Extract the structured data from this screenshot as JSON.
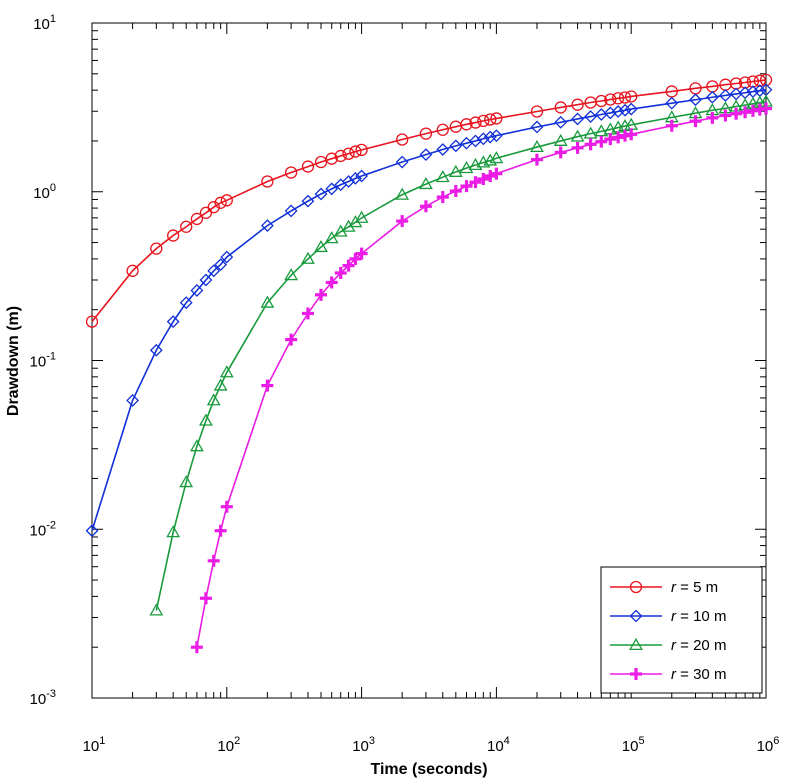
{
  "chart_data": {
    "type": "line",
    "x_scale": "log",
    "y_scale": "log",
    "xlim": [
      10,
      1000000
    ],
    "ylim": [
      0.001,
      10
    ],
    "xlabel": "Time (seconds)",
    "ylabel": "Drawdown (m)",
    "x_ticks": [
      {
        "base": "10",
        "exp": "1"
      },
      {
        "base": "10",
        "exp": "2"
      },
      {
        "base": "10",
        "exp": "3"
      },
      {
        "base": "10",
        "exp": "4"
      },
      {
        "base": "10",
        "exp": "5"
      },
      {
        "base": "10",
        "exp": "6"
      }
    ],
    "y_ticks": [
      {
        "base": "10",
        "exp": "-3"
      },
      {
        "base": "10",
        "exp": "-2"
      },
      {
        "base": "10",
        "exp": "-1"
      },
      {
        "base": "10",
        "exp": "0"
      },
      {
        "base": "10",
        "exp": "1"
      }
    ],
    "legend_position": "bottom-right",
    "grid": false,
    "series": [
      {
        "name_italic": "r",
        "name_rest": " = 5 m",
        "color": "#e8141e",
        "marker": "circle",
        "x": [
          10,
          20,
          30,
          40,
          50,
          60,
          70,
          80,
          90,
          100,
          200,
          300,
          400,
          500,
          600,
          700,
          800,
          900,
          1000,
          2000,
          3000,
          4000,
          5000,
          6000,
          7000,
          8000,
          9000,
          10000,
          20000,
          30000,
          40000,
          50000,
          60000,
          70000,
          80000,
          90000,
          100000,
          200000,
          300000,
          400000,
          500000,
          600000,
          700000,
          800000,
          900000,
          1000000
        ],
        "y": [
          0.17,
          0.34,
          0.46,
          0.55,
          0.62,
          0.69,
          0.75,
          0.81,
          0.86,
          0.89,
          1.15,
          1.3,
          1.41,
          1.5,
          1.57,
          1.63,
          1.68,
          1.73,
          1.77,
          2.04,
          2.21,
          2.33,
          2.43,
          2.51,
          2.57,
          2.63,
          2.68,
          2.72,
          2.99,
          3.16,
          3.28,
          3.38,
          3.45,
          3.52,
          3.58,
          3.62,
          3.67,
          3.93,
          4.1,
          4.21,
          4.31,
          4.38,
          4.44,
          4.5,
          4.55,
          4.6
        ]
      },
      {
        "name_italic": "r",
        "name_rest": " = 10 m",
        "color": "#1030d8",
        "marker": "diamond",
        "x": [
          10,
          20,
          30,
          40,
          50,
          60,
          70,
          80,
          90,
          100,
          200,
          300,
          400,
          500,
          600,
          700,
          800,
          900,
          1000,
          2000,
          3000,
          4000,
          5000,
          6000,
          7000,
          8000,
          9000,
          10000,
          20000,
          30000,
          40000,
          50000,
          60000,
          70000,
          80000,
          90000,
          100000,
          200000,
          300000,
          400000,
          500000,
          600000,
          700000,
          800000,
          900000,
          1000000
        ],
        "y": [
          0.0098,
          0.058,
          0.115,
          0.17,
          0.22,
          0.26,
          0.3,
          0.34,
          0.37,
          0.41,
          0.63,
          0.77,
          0.88,
          0.97,
          1.04,
          1.1,
          1.15,
          1.2,
          1.24,
          1.5,
          1.66,
          1.78,
          1.87,
          1.94,
          2.0,
          2.06,
          2.11,
          2.15,
          2.42,
          2.58,
          2.7,
          2.79,
          2.87,
          2.93,
          2.99,
          3.04,
          3.09,
          3.35,
          3.51,
          3.63,
          3.72,
          3.8,
          3.86,
          3.92,
          3.97,
          4.02
        ]
      },
      {
        "name_italic": "r",
        "name_rest": " = 20 m",
        "color": "#189a3c",
        "marker": "triangle",
        "x": [
          30,
          40,
          50,
          60,
          70,
          80,
          90,
          100,
          200,
          300,
          400,
          500,
          600,
          700,
          800,
          900,
          1000,
          2000,
          3000,
          4000,
          5000,
          6000,
          7000,
          8000,
          9000,
          10000,
          20000,
          30000,
          40000,
          50000,
          60000,
          70000,
          80000,
          90000,
          100000,
          200000,
          300000,
          400000,
          500000,
          600000,
          700000,
          800000,
          900000,
          1000000
        ],
        "y": [
          0.0033,
          0.0096,
          0.019,
          0.031,
          0.044,
          0.058,
          0.071,
          0.085,
          0.22,
          0.32,
          0.4,
          0.47,
          0.53,
          0.58,
          0.62,
          0.66,
          0.7,
          0.96,
          1.11,
          1.22,
          1.31,
          1.38,
          1.44,
          1.49,
          1.53,
          1.58,
          1.84,
          2.0,
          2.12,
          2.21,
          2.28,
          2.34,
          2.4,
          2.45,
          2.49,
          2.76,
          2.92,
          3.04,
          3.12,
          3.2,
          3.26,
          3.32,
          3.37,
          3.42
        ]
      },
      {
        "name_italic": "r",
        "name_rest": " = 30 m",
        "color": "#ea1ce6",
        "marker": "plus",
        "x": [
          60,
          70,
          80,
          90,
          100,
          200,
          300,
          400,
          500,
          600,
          700,
          800,
          900,
          1000,
          2000,
          3000,
          4000,
          5000,
          6000,
          7000,
          8000,
          9000,
          10000,
          20000,
          30000,
          40000,
          50000,
          60000,
          70000,
          80000,
          90000,
          100000,
          200000,
          300000,
          400000,
          500000,
          600000,
          700000,
          800000,
          900000,
          1000000
        ],
        "y": [
          0.002,
          0.0039,
          0.0065,
          0.0098,
          0.0136,
          0.071,
          0.133,
          0.19,
          0.245,
          0.29,
          0.33,
          0.365,
          0.4,
          0.43,
          0.67,
          0.82,
          0.93,
          1.01,
          1.08,
          1.14,
          1.19,
          1.24,
          1.28,
          1.55,
          1.71,
          1.82,
          1.91,
          1.98,
          2.05,
          2.1,
          2.15,
          2.19,
          2.46,
          2.62,
          2.74,
          2.83,
          2.9,
          2.96,
          3.02,
          3.07,
          3.11
        ]
      }
    ]
  }
}
